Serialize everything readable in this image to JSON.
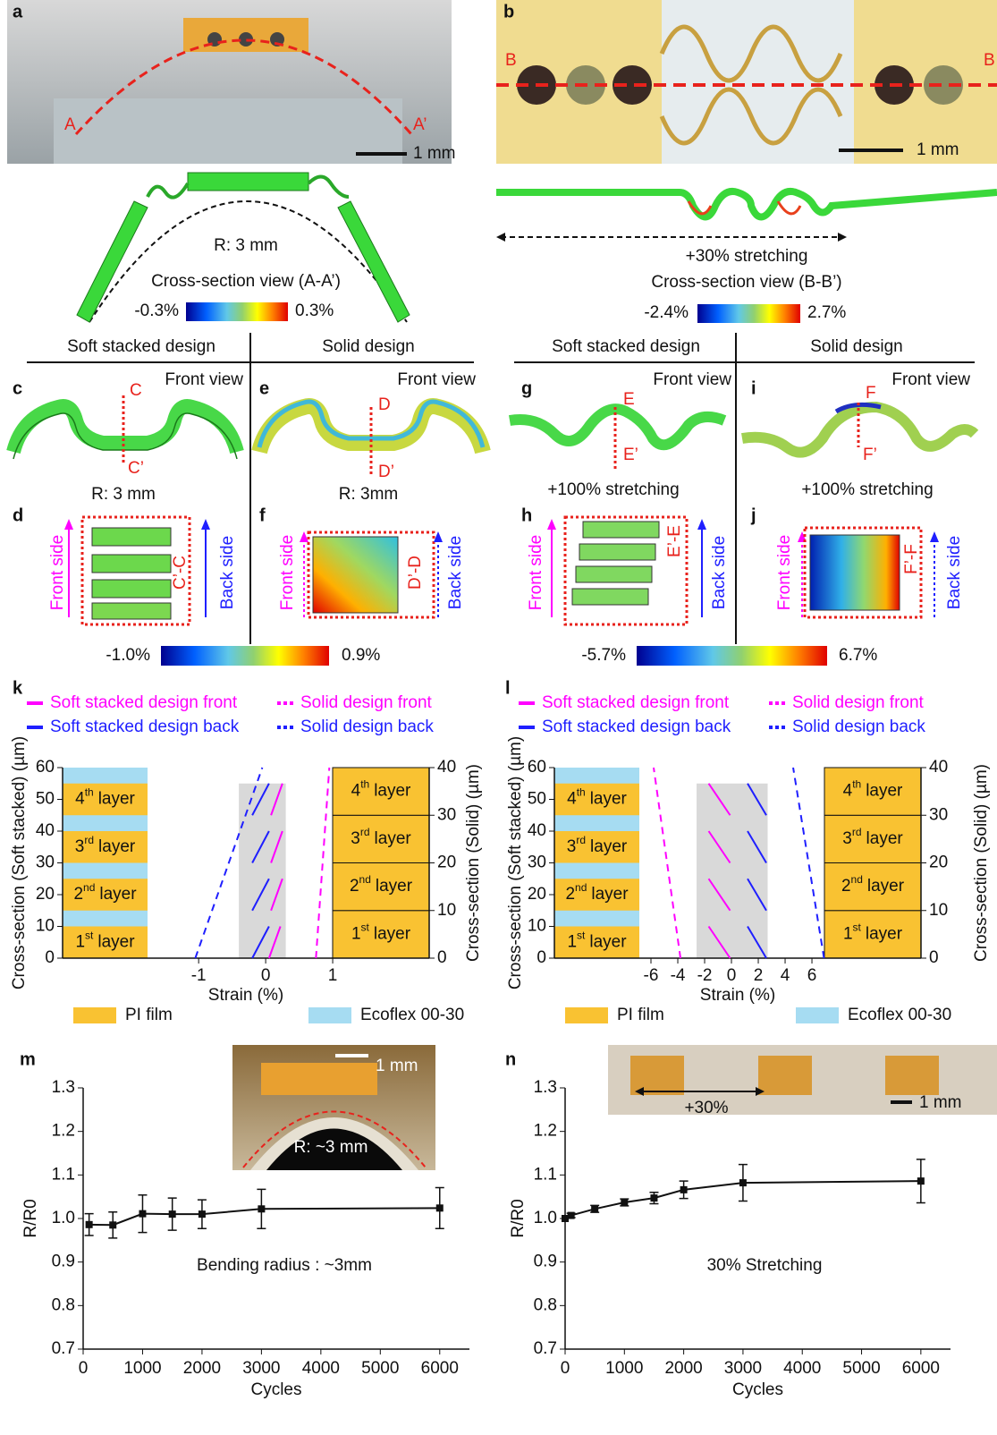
{
  "panel_labels": [
    "a",
    "b",
    "c",
    "d",
    "e",
    "f",
    "g",
    "h",
    "i",
    "j"
  ],
  "photos": {
    "a": {
      "left": "A",
      "right": "A’",
      "scale": "1 mm"
    },
    "b": {
      "left": "B",
      "right": "B",
      "scale": "1 mm"
    }
  },
  "sections": {
    "bending": {
      "radius": "R: 3 mm",
      "title": "Cross-section view (A-A’)",
      "min": "-0.3%",
      "max": "0.3%"
    },
    "stretching": {
      "strain": "+30% stretching",
      "title": "Cross-section view (B-B’)",
      "min": "-2.4%",
      "max": "2.7%"
    }
  },
  "designs": {
    "soft": "Soft stacked design",
    "solid": "Solid design",
    "front_view": "Front view",
    "front_side": "Front side",
    "back_side": "Back side"
  },
  "views": {
    "c": {
      "top": "C",
      "bottom": "C’",
      "cut": "C’-C",
      "caption": "R: 3 mm"
    },
    "e": {
      "top": "D",
      "bottom": "D’",
      "cut": "D’-D",
      "caption": "R: 3mm"
    },
    "g": {
      "top": "E",
      "bottom": "E’",
      "cut": "E’-E",
      "caption": "+100% stretching"
    },
    "i": {
      "top": "F",
      "bottom": "F’",
      "cut": "F’-F",
      "caption": "+100% stretching"
    }
  },
  "colorbars": {
    "bending": {
      "min": "-1.0%",
      "max": "0.9%"
    },
    "stretching": {
      "min": "-5.7%",
      "max": "6.7%"
    }
  },
  "insets": {
    "m": {
      "scale": "1 mm",
      "radius": "R: ~3 mm"
    },
    "n": {
      "strain": "+30%",
      "scale": "1 mm"
    }
  },
  "chart_data": [
    {
      "type": "line",
      "label": "k",
      "xlabel": "Strain (%)",
      "ylabel": "Cross-section (Soft stacked) (µm)",
      "y2label": "Cross-section (Solid) (µm)",
      "xlim": [
        -3.03,
        2.44
      ],
      "xticks": [
        -1,
        0,
        1
      ],
      "ylim": [
        0,
        60
      ],
      "yticks": [
        0,
        10,
        20,
        30,
        40,
        50,
        60
      ],
      "y2lim": [
        0,
        40
      ],
      "y2ticks": [
        0,
        10,
        20,
        30,
        40
      ],
      "band": [
        -0.4,
        0.3
      ],
      "band_color": "#d9d9d9",
      "ecoflex_y": [
        0,
        60
      ],
      "pi_layers_y": [
        [
          0,
          10
        ],
        [
          15,
          25
        ],
        [
          30,
          40
        ],
        [
          45,
          55
        ]
      ],
      "solid_layers_y2": [
        [
          0,
          10
        ],
        [
          10,
          20
        ],
        [
          20,
          30
        ],
        [
          30,
          40
        ]
      ],
      "layers": [
        {
          "ordinal": "1",
          "suffix": "st",
          "word": "layer"
        },
        {
          "ordinal": "2",
          "suffix": "nd",
          "word": "layer"
        },
        {
          "ordinal": "3",
          "suffix": "rd",
          "word": "layer"
        },
        {
          "ordinal": "4",
          "suffix": "th",
          "word": "layer"
        }
      ],
      "materials": [
        {
          "name": "PI film",
          "color": "#f9c232"
        },
        {
          "name": "Ecoflex 00-30",
          "color": "#a6dcf2"
        }
      ],
      "series": [
        {
          "name": "Soft stacked design front",
          "color": "#ff00ff",
          "dash": "solid",
          "axis": "y",
          "x": [
            0.05,
            0.22,
            null,
            0.08,
            0.25,
            null,
            0.08,
            0.25,
            null,
            0.08,
            0.25
          ],
          "values": [
            0,
            10,
            null,
            15,
            25,
            null,
            30,
            40,
            null,
            45,
            55
          ]
        },
        {
          "name": "Solid design front",
          "color": "#ff00ff",
          "dash": "dashed",
          "axis": "y2",
          "x": [
            0.75,
            0.95
          ],
          "values": [
            0,
            40
          ]
        },
        {
          "name": "Soft stacked design back",
          "color": "#1f1fff",
          "dash": "solid",
          "axis": "y",
          "x": [
            -0.2,
            0.05,
            null,
            -0.2,
            0.05,
            null,
            -0.2,
            0.05,
            null,
            -0.2,
            0.05
          ],
          "values": [
            0,
            10,
            null,
            15,
            25,
            null,
            30,
            40,
            null,
            45,
            55
          ]
        },
        {
          "name": "Solid design back",
          "color": "#1f1fff",
          "dash": "dashed",
          "axis": "y2",
          "x": [
            -1.05,
            -0.05
          ],
          "values": [
            0,
            40
          ]
        }
      ]
    },
    {
      "type": "line",
      "label": "l",
      "xlabel": "Strain (%)",
      "ylabel": "Cross-section (Soft stacked) (µm)",
      "y2label": "Cross-section (Solid) (µm)",
      "xlim": [
        -13.2,
        14.13
      ],
      "xticks": [
        -6,
        -4,
        -2,
        0,
        2,
        4,
        6
      ],
      "ylim": [
        0,
        60
      ],
      "yticks": [
        0,
        10,
        20,
        30,
        40,
        50,
        60
      ],
      "y2lim": [
        0,
        40
      ],
      "y2ticks": [
        0,
        10,
        20,
        30,
        40
      ],
      "band": [
        -2.6,
        2.7
      ],
      "band_color": "#d9d9d9",
      "ecoflex_y": [
        0,
        60
      ],
      "pi_layers_y": [
        [
          0,
          10
        ],
        [
          15,
          25
        ],
        [
          30,
          40
        ],
        [
          45,
          55
        ]
      ],
      "solid_layers_y2": [
        [
          0,
          10
        ],
        [
          10,
          20
        ],
        [
          20,
          30
        ],
        [
          30,
          40
        ]
      ],
      "layers": [
        {
          "ordinal": "1",
          "suffix": "st",
          "word": "layer"
        },
        {
          "ordinal": "2",
          "suffix": "nd",
          "word": "layer"
        },
        {
          "ordinal": "3",
          "suffix": "rd",
          "word": "layer"
        },
        {
          "ordinal": "4",
          "suffix": "th",
          "word": "layer"
        }
      ],
      "materials": [
        {
          "name": "PI film",
          "color": "#f9c232"
        },
        {
          "name": "Ecoflex 00-30",
          "color": "#a6dcf2"
        }
      ],
      "series": [
        {
          "name": "Soft stacked design front",
          "color": "#ff00ff",
          "dash": "solid",
          "axis": "y",
          "x": [
            -0.1,
            -1.7,
            null,
            -0.1,
            -1.7,
            null,
            -0.1,
            -1.7,
            null,
            -0.1,
            -1.7
          ],
          "values": [
            0,
            10,
            null,
            15,
            25,
            null,
            30,
            40,
            null,
            45,
            55
          ]
        },
        {
          "name": "Solid design front",
          "color": "#ff00ff",
          "dash": "dashed",
          "axis": "y2",
          "x": [
            -3.8,
            -5.8
          ],
          "values": [
            0,
            40
          ]
        },
        {
          "name": "Soft stacked design back",
          "color": "#1f1fff",
          "dash": "solid",
          "axis": "y",
          "x": [
            2.6,
            1.2,
            null,
            2.6,
            1.2,
            null,
            2.6,
            1.2,
            null,
            2.6,
            1.2
          ],
          "values": [
            0,
            10,
            null,
            15,
            25,
            null,
            30,
            40,
            null,
            45,
            55
          ]
        },
        {
          "name": "Solid design back",
          "color": "#1f1fff",
          "dash": "dashed",
          "axis": "y2",
          "x": [
            6.9,
            4.6
          ],
          "values": [
            0,
            40
          ]
        }
      ]
    },
    {
      "type": "line",
      "label": "m",
      "xlabel": "Cycles",
      "ylabel": "R/R0",
      "annotation": "Bending radius : ~3mm",
      "xlim": [
        0,
        6500
      ],
      "xticks": [
        0,
        1000,
        2000,
        3000,
        4000,
        5000,
        6000
      ],
      "ylim": [
        0.7,
        1.3
      ],
      "yticks": [
        0.7,
        0.8,
        0.9,
        {
          "value": 1,
          "label": "1.0"
        },
        1.1,
        1.2,
        1.3
      ],
      "series": [
        {
          "color": "#111111",
          "x": [
            100,
            500,
            1000,
            1500,
            2000,
            3000,
            6000
          ],
          "values": [
            0.986,
            0.985,
            1.011,
            1.01,
            1.01,
            1.022,
            1.024
          ],
          "errors": [
            0.025,
            0.03,
            0.043,
            0.037,
            0.033,
            0.045,
            0.047
          ]
        }
      ]
    },
    {
      "type": "line",
      "label": "n",
      "xlabel": "Cycles",
      "ylabel": "R/R0",
      "annotation": "30% Stretching",
      "xlim": [
        0,
        6500
      ],
      "xticks": [
        0,
        1000,
        2000,
        3000,
        4000,
        5000,
        6000
      ],
      "ylim": [
        0.7,
        1.3
      ],
      "yticks": [
        0.7,
        0.8,
        0.9,
        {
          "value": 1,
          "label": "1.0"
        },
        1.1,
        1.2,
        1.3
      ],
      "series": [
        {
          "color": "#111111",
          "x": [
            0,
            100,
            500,
            1000,
            1500,
            2000,
            3000,
            6000
          ],
          "values": [
            1.0,
            1.007,
            1.022,
            1.037,
            1.047,
            1.066,
            1.082,
            1.086
          ],
          "errors": [
            null,
            0.005,
            0.008,
            0.008,
            0.013,
            0.02,
            0.042,
            0.05
          ]
        }
      ]
    }
  ]
}
